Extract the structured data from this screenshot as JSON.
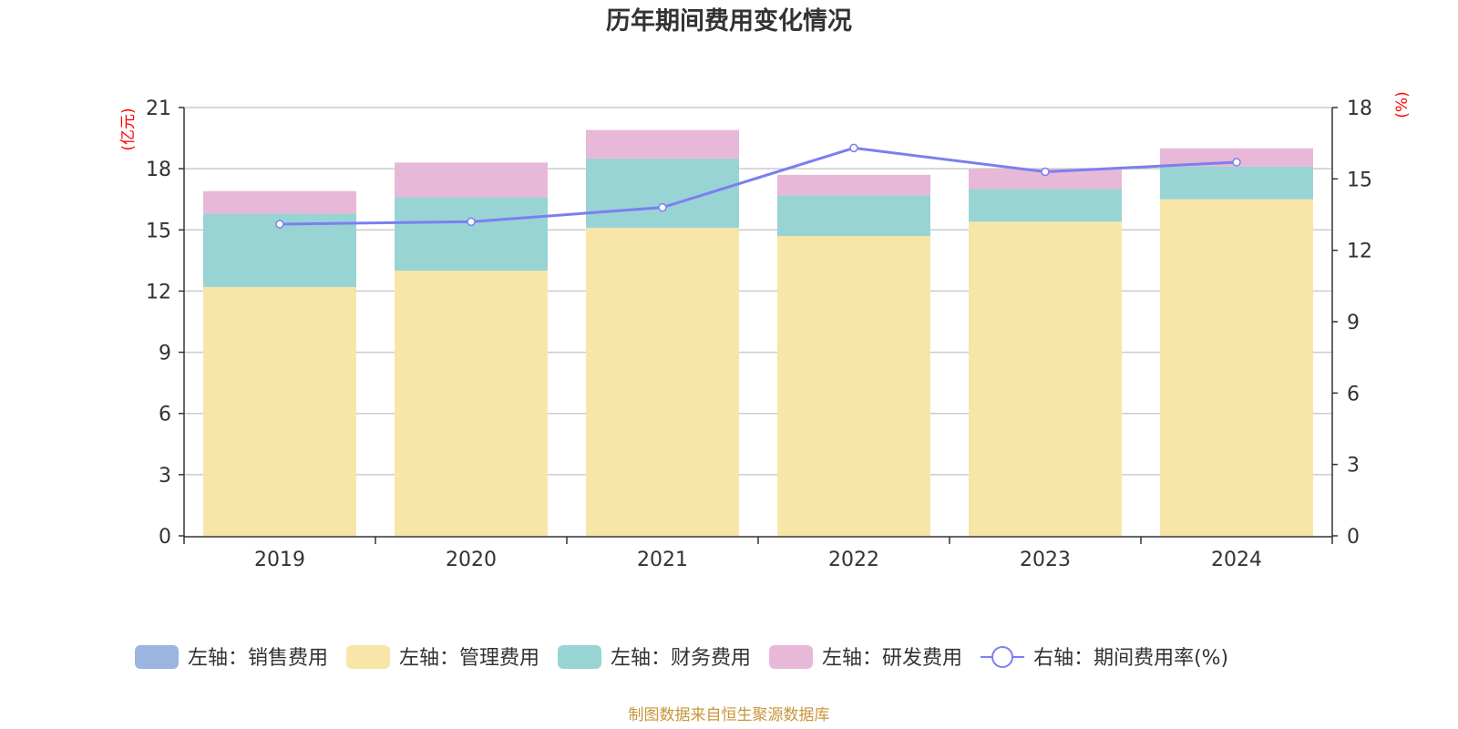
{
  "chart_data": {
    "type": "bar",
    "title": "历年期间费用变化情况",
    "categories": [
      "2019",
      "2020",
      "2021",
      "2022",
      "2023",
      "2024"
    ],
    "left_axis": {
      "unit_label": "(亿元)",
      "ylim": [
        0,
        21
      ],
      "ticks": [
        "0",
        "3",
        "6",
        "9",
        "12",
        "15",
        "18",
        "21"
      ]
    },
    "right_axis": {
      "unit_label": "(%)",
      "ylim": [
        0,
        18
      ],
      "ticks": [
        "0",
        "3",
        "6",
        "9",
        "12",
        "15",
        "18"
      ]
    },
    "series": [
      {
        "name": "销售费用",
        "legend": "左轴：销售费用",
        "axis": "left",
        "color": "#9bb5e0",
        "values": [
          0,
          0,
          0,
          0,
          0,
          0
        ]
      },
      {
        "name": "管理费用",
        "legend": "左轴：管理费用",
        "axis": "left",
        "color": "#f8e6a8",
        "values": [
          12.2,
          13.0,
          15.1,
          14.7,
          15.4,
          16.5
        ]
      },
      {
        "name": "财务费用",
        "legend": "左轴：财务费用",
        "axis": "left",
        "color": "#98d4d4",
        "values": [
          3.6,
          3.6,
          3.4,
          2.0,
          1.6,
          1.6
        ]
      },
      {
        "name": "研发费用",
        "legend": "左轴：研发费用",
        "axis": "left",
        "color": "#e8b8d8",
        "values": [
          1.1,
          1.7,
          1.4,
          1.0,
          1.0,
          0.9
        ]
      },
      {
        "name": "期间费用率(%)",
        "legend": "右轴：期间费用率(%)",
        "axis": "right",
        "type": "line",
        "color": "#7b7ff0",
        "values": [
          13.1,
          13.2,
          13.8,
          16.3,
          15.3,
          15.7
        ]
      }
    ],
    "grid": true,
    "legend_position": "bottom"
  },
  "footer": {
    "source": "制图数据来自恒生聚源数据库"
  }
}
